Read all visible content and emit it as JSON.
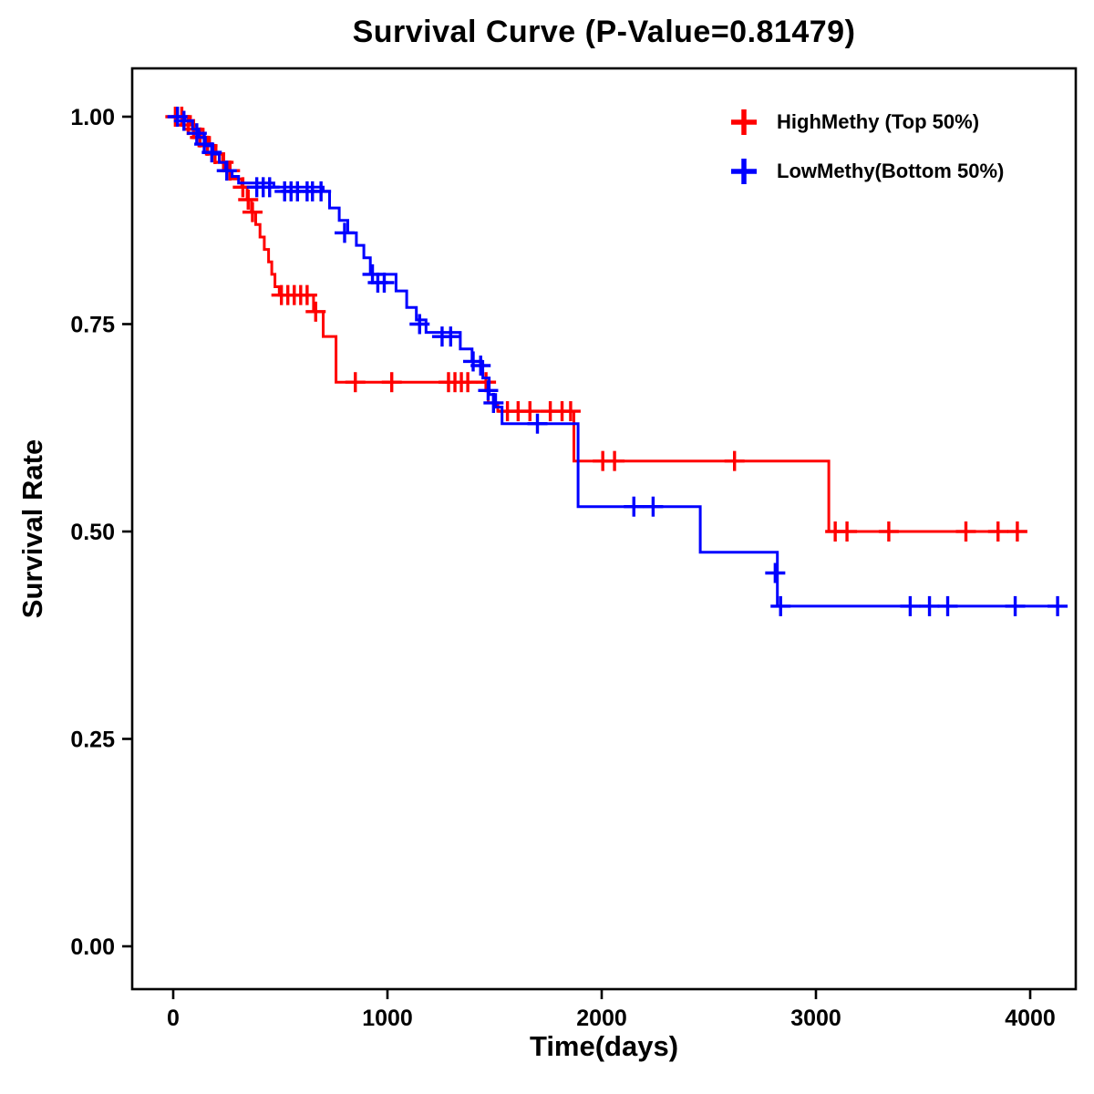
{
  "chart_data": {
    "type": "line",
    "subtype": "kaplan-meier-step",
    "title": "Survival Curve (P-Value=0.81479)",
    "xlabel": "Time(days)",
    "ylabel": "Survival Rate",
    "xlim": [
      -190,
      4210
    ],
    "ylim": [
      -0.05,
      1.06
    ],
    "x_ticks": [
      0,
      1000,
      2000,
      3000,
      4000
    ],
    "x_tick_labels": [
      "0",
      "1000",
      "2000",
      "3000",
      "4000"
    ],
    "y_ticks": [
      0.0,
      0.25,
      0.5,
      0.75,
      1.0
    ],
    "y_tick_labels": [
      "0.00",
      "0.25",
      "0.50",
      "0.75",
      "1.00"
    ],
    "grid": false,
    "legend_position": "top-right",
    "frame_color": "#000000",
    "series": [
      {
        "name": "HighMethy (Top 50%)",
        "color": "#FF0000",
        "steps": [
          [
            0,
            1.0
          ],
          [
            80,
            0.99
          ],
          [
            110,
            0.985
          ],
          [
            140,
            0.975
          ],
          [
            170,
            0.965
          ],
          [
            200,
            0.955
          ],
          [
            230,
            0.945
          ],
          [
            255,
            0.935
          ],
          [
            275,
            0.925
          ],
          [
            320,
            0.915
          ],
          [
            345,
            0.9
          ],
          [
            365,
            0.885
          ],
          [
            385,
            0.87
          ],
          [
            405,
            0.855
          ],
          [
            425,
            0.84
          ],
          [
            445,
            0.825
          ],
          [
            460,
            0.81
          ],
          [
            475,
            0.795
          ],
          [
            495,
            0.785
          ],
          [
            655,
            0.765
          ],
          [
            700,
            0.735
          ],
          [
            760,
            0.68
          ],
          [
            1470,
            0.655
          ],
          [
            1515,
            0.645
          ],
          [
            1870,
            0.585
          ],
          [
            3060,
            0.5
          ],
          [
            3949,
            0.5
          ]
        ],
        "censors": [
          [
            10,
            1.0
          ],
          [
            40,
            1.0
          ],
          [
            70,
            0.99
          ],
          [
            95,
            0.985
          ],
          [
            125,
            0.975
          ],
          [
            160,
            0.965
          ],
          [
            195,
            0.955
          ],
          [
            235,
            0.945
          ],
          [
            265,
            0.935
          ],
          [
            325,
            0.915
          ],
          [
            350,
            0.9
          ],
          [
            370,
            0.885
          ],
          [
            505,
            0.785
          ],
          [
            535,
            0.785
          ],
          [
            565,
            0.785
          ],
          [
            595,
            0.785
          ],
          [
            625,
            0.785
          ],
          [
            665,
            0.765
          ],
          [
            850,
            0.68
          ],
          [
            1020,
            0.68
          ],
          [
            1285,
            0.68
          ],
          [
            1315,
            0.68
          ],
          [
            1345,
            0.68
          ],
          [
            1375,
            0.68
          ],
          [
            1460,
            0.68
          ],
          [
            1560,
            0.645
          ],
          [
            1610,
            0.645
          ],
          [
            1665,
            0.645
          ],
          [
            1760,
            0.645
          ],
          [
            1815,
            0.645
          ],
          [
            1855,
            0.645
          ],
          [
            2005,
            0.585
          ],
          [
            2060,
            0.585
          ],
          [
            2620,
            0.585
          ],
          [
            3090,
            0.5
          ],
          [
            3145,
            0.5
          ],
          [
            3340,
            0.5
          ],
          [
            3700,
            0.5
          ],
          [
            3850,
            0.5
          ],
          [
            3940,
            0.5
          ]
        ]
      },
      {
        "name": "LowMethy(Bottom 50%)",
        "color": "#0000FF",
        "steps": [
          [
            0,
            1.0
          ],
          [
            55,
            0.995
          ],
          [
            90,
            0.985
          ],
          [
            120,
            0.975
          ],
          [
            150,
            0.965
          ],
          [
            185,
            0.955
          ],
          [
            215,
            0.945
          ],
          [
            245,
            0.935
          ],
          [
            275,
            0.928
          ],
          [
            305,
            0.92
          ],
          [
            470,
            0.915
          ],
          [
            700,
            0.91
          ],
          [
            730,
            0.89
          ],
          [
            775,
            0.875
          ],
          [
            815,
            0.86
          ],
          [
            855,
            0.845
          ],
          [
            890,
            0.83
          ],
          [
            920,
            0.81
          ],
          [
            1040,
            0.79
          ],
          [
            1090,
            0.77
          ],
          [
            1135,
            0.755
          ],
          [
            1180,
            0.74
          ],
          [
            1340,
            0.72
          ],
          [
            1395,
            0.705
          ],
          [
            1445,
            0.685
          ],
          [
            1475,
            0.665
          ],
          [
            1505,
            0.65
          ],
          [
            1535,
            0.63
          ],
          [
            1890,
            0.53
          ],
          [
            2460,
            0.475
          ],
          [
            2820,
            0.41
          ],
          [
            4128,
            0.41
          ]
        ],
        "censors": [
          [
            20,
            1.0
          ],
          [
            50,
            0.995
          ],
          [
            110,
            0.98
          ],
          [
            145,
            0.967
          ],
          [
            180,
            0.957
          ],
          [
            250,
            0.935
          ],
          [
            390,
            0.915
          ],
          [
            420,
            0.915
          ],
          [
            450,
            0.915
          ],
          [
            520,
            0.91
          ],
          [
            550,
            0.91
          ],
          [
            580,
            0.91
          ],
          [
            625,
            0.91
          ],
          [
            650,
            0.91
          ],
          [
            690,
            0.91
          ],
          [
            800,
            0.86
          ],
          [
            930,
            0.81
          ],
          [
            955,
            0.8
          ],
          [
            985,
            0.8
          ],
          [
            1150,
            0.75
          ],
          [
            1255,
            0.735
          ],
          [
            1295,
            0.735
          ],
          [
            1400,
            0.705
          ],
          [
            1435,
            0.7
          ],
          [
            1470,
            0.67
          ],
          [
            1495,
            0.655
          ],
          [
            1700,
            0.63
          ],
          [
            2150,
            0.53
          ],
          [
            2240,
            0.53
          ],
          [
            2810,
            0.45
          ],
          [
            2835,
            0.41
          ],
          [
            3440,
            0.41
          ],
          [
            3530,
            0.41
          ],
          [
            3615,
            0.41
          ],
          [
            3930,
            0.41
          ],
          [
            4128,
            0.41
          ]
        ]
      }
    ]
  }
}
